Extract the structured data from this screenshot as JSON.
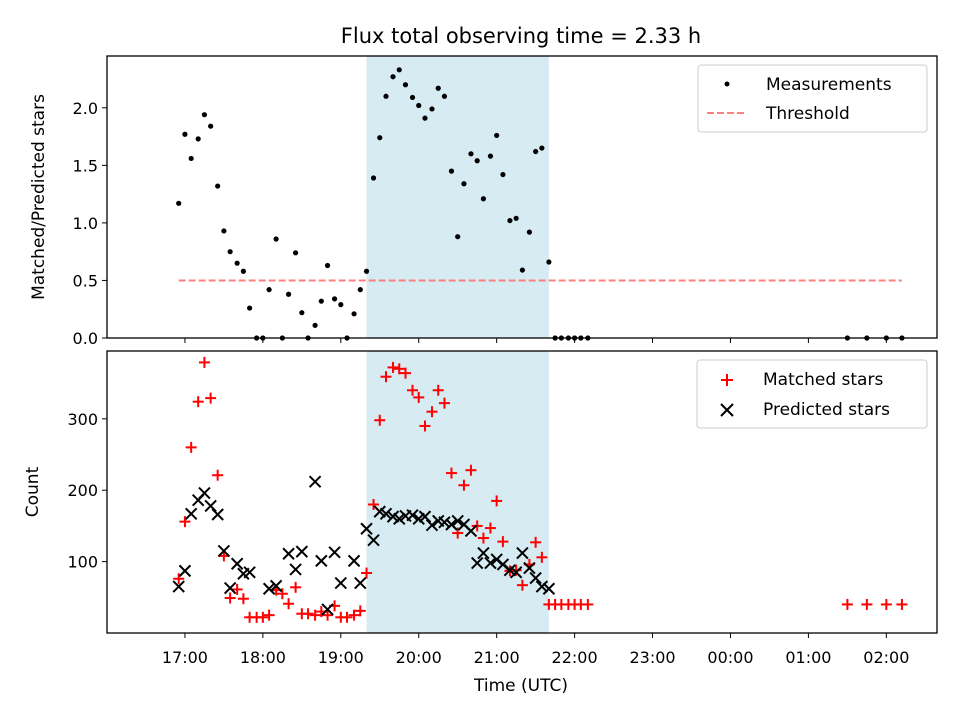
{
  "chart_data": {
    "title": "Flux total observing time = 2.33 h",
    "xlabel": "Time (UTC)",
    "x_unit": "hours (UTC, continuing past midnight)",
    "xlim": [
      16.0,
      26.65
    ],
    "x_ticks": [
      {
        "x": 17,
        "label": "17:00"
      },
      {
        "x": 18,
        "label": "18:00"
      },
      {
        "x": 19,
        "label": "19:00"
      },
      {
        "x": 20,
        "label": "20:00"
      },
      {
        "x": 21,
        "label": "21:00"
      },
      {
        "x": 22,
        "label": "22:00"
      },
      {
        "x": 23,
        "label": "23:00"
      },
      {
        "x": 24,
        "label": "00:00"
      },
      {
        "x": 25,
        "label": "01:00"
      },
      {
        "x": 26,
        "label": "02:00"
      }
    ],
    "highlight_span": {
      "start": 19.33,
      "end": 21.67,
      "color": "#add8e6"
    },
    "panels": [
      {
        "type": "scatter",
        "ylabel": "Matched/Predicted stars",
        "ylim": [
          0,
          2.45
        ],
        "yticks": [
          0.0,
          0.5,
          1.0,
          1.5,
          2.0
        ],
        "ytick_labels": [
          "0.0",
          "0.5",
          "1.0",
          "1.5",
          "2.0"
        ],
        "legend_position": "top-right",
        "series": [
          {
            "name": "Measurements",
            "kind": "dot",
            "color": "#000000",
            "points": [
              [
                16.92,
                1.17
              ],
              [
                17.0,
                1.77
              ],
              [
                17.08,
                1.56
              ],
              [
                17.17,
                1.73
              ],
              [
                17.25,
                1.94
              ],
              [
                17.33,
                1.84
              ],
              [
                17.42,
                1.32
              ],
              [
                17.5,
                0.93
              ],
              [
                17.58,
                0.75
              ],
              [
                17.67,
                0.65
              ],
              [
                17.75,
                0.58
              ],
              [
                17.83,
                0.26
              ],
              [
                17.92,
                0.0
              ],
              [
                18.0,
                0.0
              ],
              [
                18.08,
                0.42
              ],
              [
                18.17,
                0.86
              ],
              [
                18.25,
                0.0
              ],
              [
                18.33,
                0.38
              ],
              [
                18.42,
                0.74
              ],
              [
                18.5,
                0.22
              ],
              [
                18.58,
                0.0
              ],
              [
                18.67,
                0.11
              ],
              [
                18.75,
                0.32
              ],
              [
                18.83,
                0.63
              ],
              [
                18.92,
                0.34
              ],
              [
                19.0,
                0.29
              ],
              [
                19.08,
                0.0
              ],
              [
                19.17,
                0.21
              ],
              [
                19.25,
                0.42
              ],
              [
                19.33,
                0.58
              ],
              [
                19.42,
                1.39
              ],
              [
                19.5,
                1.74
              ],
              [
                19.58,
                2.1
              ],
              [
                19.67,
                2.27
              ],
              [
                19.75,
                2.33
              ],
              [
                19.83,
                2.2
              ],
              [
                19.92,
                2.09
              ],
              [
                20.0,
                2.02
              ],
              [
                20.08,
                1.91
              ],
              [
                20.17,
                1.99
              ],
              [
                20.25,
                2.17
              ],
              [
                20.33,
                2.1
              ],
              [
                20.42,
                1.45
              ],
              [
                20.5,
                0.88
              ],
              [
                20.58,
                1.34
              ],
              [
                20.67,
                1.6
              ],
              [
                20.75,
                1.54
              ],
              [
                20.83,
                1.21
              ],
              [
                20.92,
                1.58
              ],
              [
                21.0,
                1.76
              ],
              [
                21.08,
                1.42
              ],
              [
                21.17,
                1.02
              ],
              [
                21.25,
                1.04
              ],
              [
                21.33,
                0.59
              ],
              [
                21.42,
                0.92
              ],
              [
                21.5,
                1.62
              ],
              [
                21.58,
                1.65
              ],
              [
                21.67,
                0.66
              ],
              [
                21.75,
                0.0
              ],
              [
                21.83,
                0.0
              ],
              [
                21.92,
                0.0
              ],
              [
                22.0,
                0.0
              ],
              [
                22.08,
                0.0
              ],
              [
                22.17,
                0.0
              ],
              [
                25.5,
                0.0
              ],
              [
                25.75,
                0.0
              ],
              [
                26.0,
                0.0
              ],
              [
                26.2,
                0.0
              ]
            ]
          },
          {
            "name": "Threshold",
            "kind": "hline",
            "color": "#ff7f7f",
            "y": 0.5,
            "x_range": [
              16.92,
              26.2
            ]
          }
        ]
      },
      {
        "type": "scatter",
        "ylabel": "Count",
        "ylim": [
          0,
          395
        ],
        "yticks": [
          100,
          200,
          300
        ],
        "ytick_labels": [
          "100",
          "200",
          "300"
        ],
        "legend_position": "top-right",
        "series": [
          {
            "name": "Matched stars",
            "kind": "plus",
            "color": "#ff0000",
            "points": [
              [
                16.92,
                76
              ],
              [
                17.0,
                156
              ],
              [
                17.08,
                260
              ],
              [
                17.17,
                324
              ],
              [
                17.25,
                379
              ],
              [
                17.33,
                329
              ],
              [
                17.42,
                221
              ],
              [
                17.5,
                108
              ],
              [
                17.58,
                49
              ],
              [
                17.67,
                61
              ],
              [
                17.75,
                48
              ],
              [
                17.83,
                22
              ],
              [
                17.92,
                22
              ],
              [
                18.0,
                22
              ],
              [
                18.08,
                25
              ],
              [
                18.17,
                60
              ],
              [
                18.25,
                55
              ],
              [
                18.33,
                41
              ],
              [
                18.42,
                64
              ],
              [
                18.5,
                27
              ],
              [
                18.58,
                27
              ],
              [
                18.67,
                25
              ],
              [
                18.75,
                30
              ],
              [
                18.83,
                25
              ],
              [
                18.92,
                38
              ],
              [
                19.0,
                22
              ],
              [
                19.08,
                22
              ],
              [
                19.17,
                25
              ],
              [
                19.25,
                31
              ],
              [
                19.33,
                84
              ],
              [
                19.42,
                180
              ],
              [
                19.5,
                298
              ],
              [
                19.58,
                359
              ],
              [
                19.67,
                372
              ],
              [
                19.75,
                370
              ],
              [
                19.83,
                364
              ],
              [
                19.92,
                340
              ],
              [
                20.0,
                330
              ],
              [
                20.08,
                290
              ],
              [
                20.17,
                310
              ],
              [
                20.25,
                340
              ],
              [
                20.33,
                322
              ],
              [
                20.42,
                224
              ],
              [
                20.5,
                140
              ],
              [
                20.58,
                207
              ],
              [
                20.67,
                228
              ],
              [
                20.75,
                150
              ],
              [
                20.83,
                133
              ],
              [
                20.92,
                147
              ],
              [
                21.0,
                185
              ],
              [
                21.08,
                128
              ],
              [
                21.17,
                87
              ],
              [
                21.25,
                88
              ],
              [
                21.33,
                67
              ],
              [
                21.42,
                96
              ],
              [
                21.5,
                127
              ],
              [
                21.58,
                106
              ],
              [
                21.67,
                40
              ],
              [
                21.75,
                40
              ],
              [
                21.83,
                40
              ],
              [
                21.92,
                40
              ],
              [
                22.0,
                40
              ],
              [
                22.08,
                40
              ],
              [
                22.17,
                40
              ],
              [
                25.5,
                40
              ],
              [
                25.75,
                40
              ],
              [
                26.0,
                40
              ],
              [
                26.2,
                40
              ]
            ]
          },
          {
            "name": "Predicted stars",
            "kind": "cross",
            "color": "#000000",
            "points": [
              [
                16.92,
                65
              ],
              [
                17.0,
                87
              ],
              [
                17.08,
                167
              ],
              [
                17.17,
                186
              ],
              [
                17.25,
                196
              ],
              [
                17.33,
                178
              ],
              [
                17.42,
                166
              ],
              [
                17.5,
                115
              ],
              [
                17.58,
                63
              ],
              [
                17.67,
                97
              ],
              [
                17.75,
                83
              ],
              [
                17.83,
                85
              ],
              [
                18.08,
                62
              ],
              [
                18.17,
                66
              ],
              [
                18.33,
                111
              ],
              [
                18.42,
                89
              ],
              [
                18.5,
                114
              ],
              [
                18.67,
                212
              ],
              [
                18.75,
                101
              ],
              [
                18.83,
                33
              ],
              [
                18.92,
                113
              ],
              [
                19.0,
                70
              ],
              [
                19.17,
                101
              ],
              [
                19.25,
                70
              ],
              [
                19.33,
                146
              ],
              [
                19.42,
                130
              ],
              [
                19.5,
                170
              ],
              [
                19.58,
                167
              ],
              [
                19.67,
                163
              ],
              [
                19.75,
                160
              ],
              [
                19.83,
                164
              ],
              [
                19.92,
                165
              ],
              [
                20.0,
                160
              ],
              [
                20.08,
                163
              ],
              [
                20.17,
                151
              ],
              [
                20.25,
                157
              ],
              [
                20.33,
                155
              ],
              [
                20.42,
                152
              ],
              [
                20.5,
                157
              ],
              [
                20.58,
                152
              ],
              [
                20.67,
                143
              ],
              [
                20.75,
                98
              ],
              [
                20.83,
                112
              ],
              [
                20.92,
                98
              ],
              [
                21.0,
                103
              ],
              [
                21.08,
                96
              ],
              [
                21.17,
                88
              ],
              [
                21.25,
                85
              ],
              [
                21.33,
                112
              ],
              [
                21.42,
                91
              ],
              [
                21.5,
                77
              ],
              [
                21.58,
                65
              ],
              [
                21.67,
                62
              ]
            ]
          }
        ]
      }
    ]
  }
}
